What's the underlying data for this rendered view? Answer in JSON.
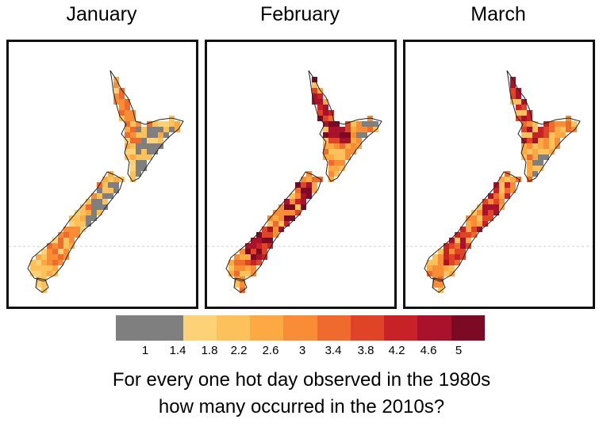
{
  "panels": [
    {
      "title": "January",
      "scheme": "jan"
    },
    {
      "title": "February",
      "scheme": "feb"
    },
    {
      "title": "March",
      "scheme": "mar"
    }
  ],
  "legend": {
    "colors": [
      "#7f7f7f",
      "#7f7f7f",
      "#fdd276",
      "#fdc15b",
      "#fca843",
      "#f98d36",
      "#ef6a2d",
      "#de4425",
      "#c72326",
      "#a8122a",
      "#7c0a24"
    ],
    "ticks": [
      "1",
      "1.4",
      "1.8",
      "2.2",
      "2.6",
      "3",
      "3.4",
      "3.8",
      "4.2",
      "4.6",
      "5"
    ]
  },
  "caption": {
    "line1": "For every one hot day observed in the 1980s",
    "line2": "how many occurred in the 2010s?"
  }
}
